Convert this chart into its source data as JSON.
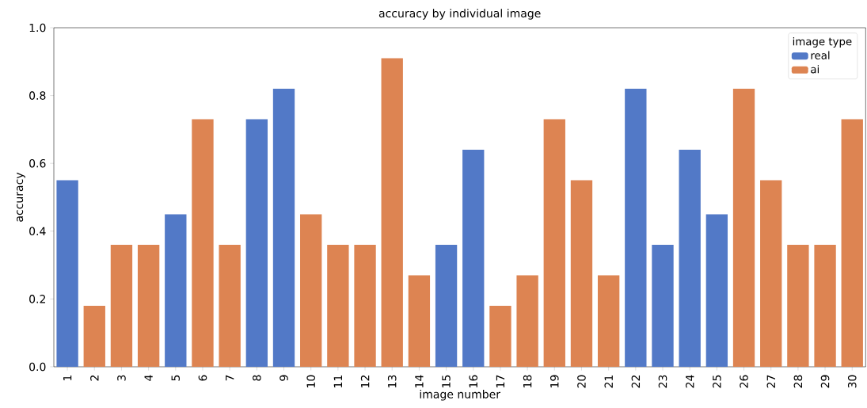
{
  "chart_data": {
    "type": "bar",
    "title": "accuracy by individual image",
    "xlabel": "image number",
    "ylabel": "accuracy",
    "legend_title": "image type",
    "legend": "top right",
    "categories": [
      "1",
      "2",
      "3",
      "4",
      "5",
      "6",
      "7",
      "8",
      "9",
      "10",
      "11",
      "12",
      "13",
      "14",
      "15",
      "16",
      "17",
      "18",
      "19",
      "20",
      "21",
      "22",
      "23",
      "24",
      "25",
      "26",
      "27",
      "28",
      "29",
      "30"
    ],
    "series": [
      {
        "name": "real",
        "color": "#5279c7",
        "values": [
          0.55,
          null,
          null,
          null,
          0.45,
          null,
          null,
          0.73,
          0.82,
          null,
          null,
          null,
          null,
          null,
          0.36,
          0.64,
          null,
          null,
          null,
          null,
          null,
          0.82,
          0.36,
          0.64,
          0.45,
          null,
          null,
          null,
          null,
          null
        ]
      },
      {
        "name": "ai",
        "color": "#dd8452",
        "values": [
          null,
          0.18,
          0.36,
          0.36,
          null,
          0.73,
          0.36,
          null,
          null,
          0.45,
          0.36,
          0.36,
          0.91,
          0.27,
          null,
          null,
          0.18,
          0.27,
          0.73,
          0.55,
          0.27,
          null,
          null,
          null,
          null,
          0.82,
          0.55,
          0.36,
          0.36,
          0.73
        ]
      }
    ],
    "ylim": [
      0,
      1
    ],
    "yticks": [
      {
        "value": 0,
        "label": "0.0"
      },
      {
        "value": 0.2,
        "label": "0.2"
      },
      {
        "value": 0.4,
        "label": "0.4"
      },
      {
        "value": 0.6,
        "label": "0.6"
      },
      {
        "value": 0.8,
        "label": "0.8"
      },
      {
        "value": 1,
        "label": "1.0"
      }
    ]
  }
}
